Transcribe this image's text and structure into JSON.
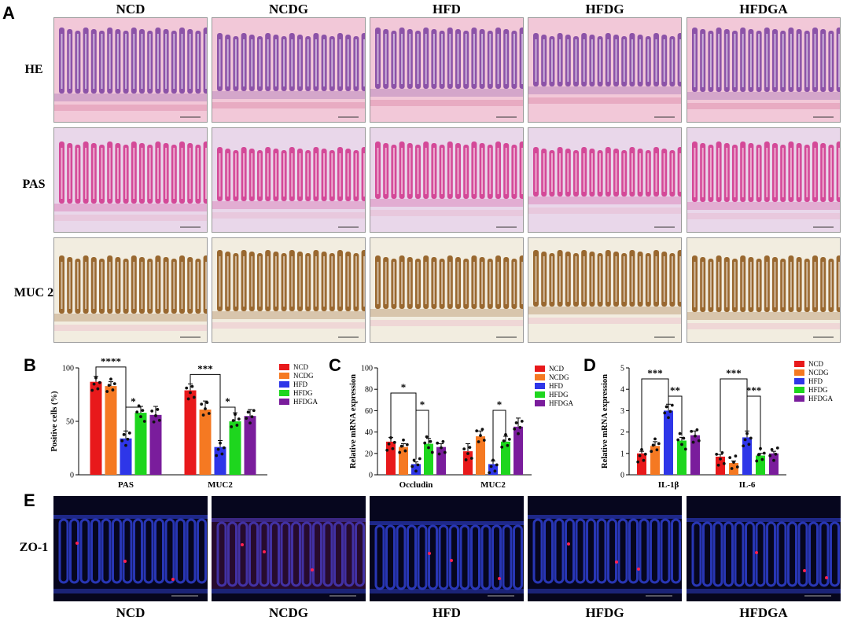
{
  "panels": {
    "A": "A",
    "B": "B",
    "C": "C",
    "D": "D",
    "E": "E"
  },
  "groups": [
    "NCD",
    "NCDG",
    "HFD",
    "HFDG",
    "HFDGA"
  ],
  "rows": [
    "HE",
    "PAS",
    "MUC 2"
  ],
  "zo_row": "ZO-1",
  "colors": {
    "NCD": "#e8191b",
    "NCDG": "#f57922",
    "HFD": "#2e36e8",
    "HFDG": "#1ed61e",
    "HFDGA": "#7a1d9c",
    "he_bg": "#f2c8d8",
    "he_crypt": "#7a3ea0",
    "pas_bg": "#e9d7ea",
    "pas_crypt": "#d0308a",
    "muc_bg": "#f2ede0",
    "muc_crypt": "#8a5010",
    "zo_bg": "#06061e",
    "zo_nuc": "#2f3fd0"
  },
  "chart_data": [
    {
      "type": "bar",
      "panel": "B",
      "ylabel": "Positive cells (%)",
      "categories": [
        "PAS",
        "MUC2"
      ],
      "ylim": [
        0,
        100
      ],
      "yticks": [
        "0",
        "50",
        "100"
      ],
      "series": [
        {
          "name": "NCD",
          "values": [
            87,
            79
          ]
        },
        {
          "name": "NCDG",
          "values": [
            83,
            61
          ]
        },
        {
          "name": "HFD",
          "values": [
            34,
            26
          ]
        },
        {
          "name": "HFDG",
          "values": [
            58,
            50
          ]
        },
        {
          "name": "HFDGA",
          "values": [
            56,
            55
          ]
        }
      ],
      "errors": [
        [
          5,
          6
        ],
        [
          4,
          8
        ],
        [
          7,
          6
        ],
        [
          6,
          8
        ],
        [
          8,
          6
        ]
      ],
      "significance": [
        {
          "cat": 0,
          "from": 0,
          "to": 2,
          "label": "****"
        },
        {
          "cat": 0,
          "from": 2,
          "to": 3,
          "label": "*"
        },
        {
          "cat": 1,
          "from": 0,
          "to": 2,
          "label": "***"
        },
        {
          "cat": 1,
          "from": 2,
          "to": 3,
          "label": "*"
        }
      ]
    },
    {
      "type": "bar",
      "panel": "C",
      "ylabel": "Relative mRNA expression",
      "categories": [
        "Occludin",
        "MUC2"
      ],
      "ylim": [
        0,
        100
      ],
      "yticks": [
        "0",
        "20",
        "40",
        "60",
        "80",
        "100"
      ],
      "series": [
        {
          "name": "NCD",
          "values": [
            31,
            22
          ]
        },
        {
          "name": "NCDG",
          "values": [
            26,
            36
          ]
        },
        {
          "name": "HFD",
          "values": [
            10,
            10
          ]
        },
        {
          "name": "HFDG",
          "values": [
            29,
            31
          ]
        },
        {
          "name": "HFDGA",
          "values": [
            26,
            45
          ]
        }
      ],
      "errors": [
        [
          4,
          7
        ],
        [
          3,
          5
        ],
        [
          2,
          3
        ],
        [
          5,
          5
        ],
        [
          3,
          8
        ]
      ],
      "significance": [
        {
          "cat": 0,
          "from": 0,
          "to": 2,
          "label": "*"
        },
        {
          "cat": 0,
          "from": 2,
          "to": 3,
          "label": "*"
        },
        {
          "cat": 1,
          "from": 2,
          "to": 3,
          "label": "*"
        }
      ]
    },
    {
      "type": "bar",
      "panel": "D",
      "ylabel": "Relative mRNA expression",
      "categories": [
        "IL-1β",
        "IL-6"
      ],
      "ylim": [
        0,
        5
      ],
      "yticks": [
        "0",
        "1",
        "2",
        "3",
        "4",
        "5"
      ],
      "series": [
        {
          "name": "NCD",
          "values": [
            1.0,
            0.85
          ]
        },
        {
          "name": "NCDG",
          "values": [
            1.35,
            0.55
          ]
        },
        {
          "name": "HFD",
          "values": [
            3.0,
            1.75
          ]
        },
        {
          "name": "HFDG",
          "values": [
            1.6,
            0.9
          ]
        },
        {
          "name": "HFDGA",
          "values": [
            1.85,
            1.0
          ]
        }
      ],
      "errors": [
        [
          0.1,
          0.1
        ],
        [
          0.2,
          0.1
        ],
        [
          0.3,
          0.3
        ],
        [
          0.15,
          0.1
        ],
        [
          0.2,
          0.1
        ]
      ],
      "significance": [
        {
          "cat": 0,
          "from": 0,
          "to": 2,
          "label": "***"
        },
        {
          "cat": 0,
          "from": 2,
          "to": 3,
          "label": "**"
        },
        {
          "cat": 1,
          "from": 0,
          "to": 2,
          "label": "***"
        },
        {
          "cat": 1,
          "from": 2,
          "to": 3,
          "label": "***"
        }
      ]
    }
  ]
}
